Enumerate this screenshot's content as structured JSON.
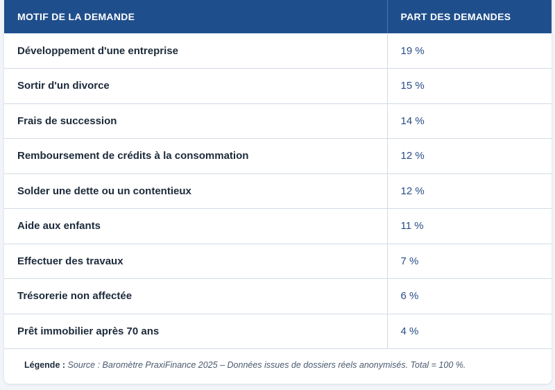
{
  "table": {
    "headers": [
      "MOTIF DE LA DEMANDE",
      "PART DES DEMANDES"
    ],
    "rows": [
      {
        "motif": "Développement d'une entreprise",
        "part": "19 %"
      },
      {
        "motif": "Sortir d'un divorce",
        "part": "15 %"
      },
      {
        "motif": "Frais de succession",
        "part": "14 %"
      },
      {
        "motif": "Remboursement de crédits à la consommation",
        "part": "12 %"
      },
      {
        "motif": "Solder une dette ou un contentieux",
        "part": "12 %"
      },
      {
        "motif": "Aide aux enfants",
        "part": "11 %"
      },
      {
        "motif": "Effectuer des travaux",
        "part": "7 %"
      },
      {
        "motif": "Trésorerie non affectée",
        "part": "6 %"
      },
      {
        "motif": "Prêt immobilier après 70 ans",
        "part": "4 %"
      }
    ]
  },
  "legend": {
    "label": "Légende :",
    "text": "Source : Baromètre PraxiFinance 2025 – Données issues de dossiers réels anonymisés. Total = 100 %."
  },
  "colors": {
    "header_bg": "#1f4e8c",
    "value_text": "#274d86"
  }
}
